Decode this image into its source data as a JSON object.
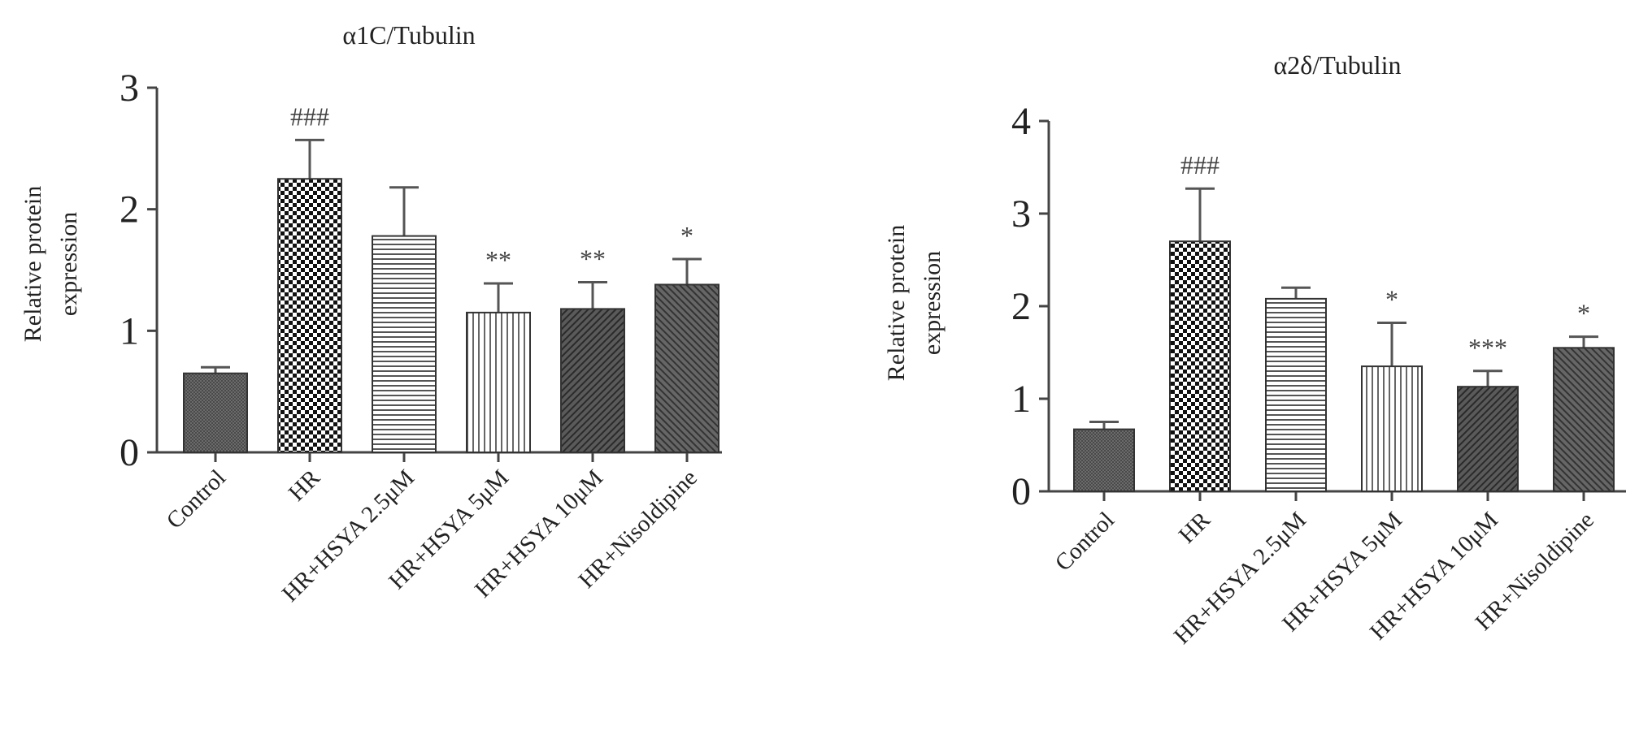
{
  "chart_data": [
    {
      "type": "bar",
      "title": "α1C/Tubulin",
      "ylabel_lines": [
        "Relative protein",
        "expression"
      ],
      "categories": [
        "Control",
        "HR",
        "HR+HSYA 2.5μM",
        "HR+HSYA 5μM",
        "HR+HSYA 10μM",
        "HR+Nisoldipine"
      ],
      "values": [
        0.65,
        2.25,
        1.78,
        1.15,
        1.18,
        1.38
      ],
      "errors": [
        0.05,
        0.32,
        0.4,
        0.24,
        0.22,
        0.21
      ],
      "significance": [
        "",
        "###",
        "",
        "**",
        "**",
        "*"
      ],
      "ylim": [
        0,
        3
      ],
      "yticks": [
        0,
        1,
        2,
        3
      ],
      "patterns": [
        "dense-grey",
        "checker",
        "horizontal",
        "vertical",
        "diag-dark",
        "diag-right"
      ],
      "grid": false
    },
    {
      "type": "bar",
      "title": "α2δ/Tubulin",
      "ylabel_lines": [
        "Relative protein",
        "expression"
      ],
      "categories": [
        "Control",
        "HR",
        "HR+HSYA 2.5μM",
        "HR+HSYA 5μM",
        "HR+HSYA 10μM",
        "HR+Nisoldipine"
      ],
      "values": [
        0.67,
        2.7,
        2.08,
        1.35,
        1.13,
        1.55
      ],
      "errors": [
        0.08,
        0.57,
        0.12,
        0.47,
        0.17,
        0.12
      ],
      "significance": [
        "",
        "###",
        "",
        "*",
        "***",
        "*"
      ],
      "ylim": [
        0,
        4
      ],
      "yticks": [
        0,
        1,
        2,
        3,
        4
      ],
      "patterns": [
        "dense-grey",
        "checker",
        "horizontal",
        "vertical",
        "diag-dark",
        "diag-right"
      ],
      "grid": false
    }
  ]
}
